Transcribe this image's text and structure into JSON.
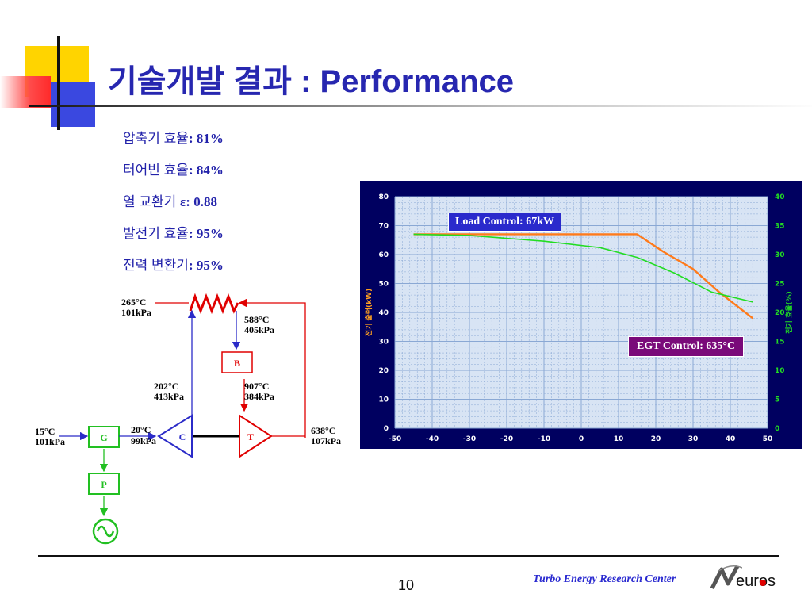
{
  "title": "기술개발 결과 : Performance",
  "specs": [
    {
      "label": "압축기 효율",
      "value": ": 81%"
    },
    {
      "label": "터어빈 효율",
      "value": ": 84%"
    },
    {
      "label": "열 교환기 ",
      "value": "ε: 0.88"
    },
    {
      "label": "발전기 효율",
      "value": ": 95%"
    },
    {
      "label": "전력 변환기",
      "value": ": 95%"
    }
  ],
  "diagram": {
    "heater_in": {
      "temp": "265°C",
      "pres": "101kPa"
    },
    "heater_out": {
      "temp": "588°C",
      "pres": "405kPa"
    },
    "burner": "B",
    "recup_hot": {
      "temp": "202°C",
      "pres": "413kPa"
    },
    "turbine_in": {
      "temp": "907°C",
      "pres": "384kPa"
    },
    "inlet": {
      "temp": "15°C",
      "pres": "101kPa"
    },
    "comp_in": {
      "temp": "20°C",
      "pres": "99kPa"
    },
    "turbine_out": {
      "temp": "638°C",
      "pres": "107kPa"
    },
    "generator": "G",
    "compressor": "C",
    "turbine": "T",
    "power_unit": "P",
    "colors": {
      "red": "#e00000",
      "blue": "#2b2bc8",
      "green": "#22c022"
    }
  },
  "chart_data": {
    "type": "line",
    "x_ticks": [
      -50,
      -40,
      -30,
      -20,
      -10,
      0,
      10,
      20,
      30,
      40,
      50
    ],
    "y_left_ticks": [
      0,
      10,
      20,
      30,
      40,
      50,
      60,
      70,
      80
    ],
    "y_right_ticks": [
      0,
      5,
      10,
      15,
      20,
      25,
      30,
      35,
      40
    ],
    "xlim": [
      -50,
      50
    ],
    "ylim_left": [
      0,
      80
    ],
    "ylim_right": [
      0,
      40
    ],
    "ylabel_left": "전기 출력(kW)",
    "ylabel_right": "전기 효율(%)",
    "grid": true,
    "series": [
      {
        "axis": "left",
        "color": "#ff7a1a",
        "x": [
          -45,
          15,
          22,
          30,
          37,
          46
        ],
        "y": [
          67,
          67,
          61,
          55,
          47,
          38
        ]
      },
      {
        "axis": "right",
        "color": "#22dd22",
        "x": [
          -45,
          -30,
          -10,
          5,
          15,
          25,
          35,
          46
        ],
        "y": [
          33.5,
          33.3,
          32.3,
          31.2,
          29.5,
          26.8,
          23.5,
          21.8
        ]
      }
    ],
    "annotations": [
      {
        "text": "Load Control: 67kW"
      },
      {
        "text": "EGT Control: 635°C"
      }
    ],
    "colors": {
      "background": "#000060",
      "plot": "#d8e4f4",
      "grid": "#8aa8d4",
      "left_axis": "#ffa020",
      "right_axis": "#22dd22"
    }
  },
  "footer": {
    "page_number": "10",
    "center_name": "Turbo Energy Research Center",
    "logo_text": "euros"
  }
}
